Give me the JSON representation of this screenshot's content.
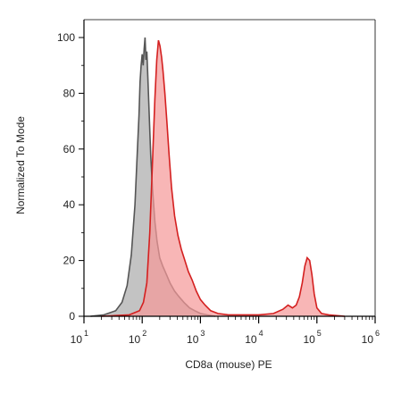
{
  "chart_data": {
    "type": "area",
    "title": "",
    "xlabel": "CD8a (mouse) PE",
    "ylabel": "Normalized To Mode",
    "xscale": "log",
    "xlim": [
      10,
      1000000
    ],
    "ylim": [
      0,
      100
    ],
    "x_ticks": [
      {
        "base": "10",
        "exp": "1",
        "value": 10
      },
      {
        "base": "10",
        "exp": "2",
        "value": 100
      },
      {
        "base": "10",
        "exp": "3",
        "value": 1000
      },
      {
        "base": "10",
        "exp": "4",
        "value": 10000
      },
      {
        "base": "10",
        "exp": "5",
        "value": 100000
      },
      {
        "base": "10",
        "exp": "6",
        "value": 1000000
      }
    ],
    "y_ticks": [
      "0",
      "20",
      "40",
      "60",
      "80",
      "100"
    ],
    "grid": false,
    "series": [
      {
        "color_fill": "#bdbdbd",
        "color_line": "#555555",
        "points": [
          [
            13,
            0
          ],
          [
            22,
            0.5
          ],
          [
            35,
            2
          ],
          [
            45,
            5
          ],
          [
            55,
            11
          ],
          [
            65,
            22
          ],
          [
            75,
            40
          ],
          [
            82,
            58
          ],
          [
            88,
            72
          ],
          [
            92,
            84
          ],
          [
            96,
            90
          ],
          [
            100,
            94
          ],
          [
            104,
            90
          ],
          [
            108,
            96
          ],
          [
            112,
            100
          ],
          [
            116,
            92
          ],
          [
            120,
            95
          ],
          [
            125,
            86
          ],
          [
            132,
            72
          ],
          [
            140,
            58
          ],
          [
            150,
            46
          ],
          [
            165,
            34
          ],
          [
            180,
            27
          ],
          [
            200,
            21
          ],
          [
            225,
            18
          ],
          [
            260,
            15
          ],
          [
            300,
            12
          ],
          [
            360,
            9
          ],
          [
            430,
            7
          ],
          [
            520,
            5
          ],
          [
            650,
            3
          ],
          [
            800,
            2
          ],
          [
            1000,
            1
          ],
          [
            1300,
            0.5
          ],
          [
            1800,
            0
          ]
        ]
      },
      {
        "color_fill": "#f59a9a",
        "color_line": "#d42020",
        "points": [
          [
            20,
            0
          ],
          [
            60,
            0.5
          ],
          [
            90,
            2
          ],
          [
            105,
            5
          ],
          [
            120,
            12
          ],
          [
            135,
            30
          ],
          [
            150,
            55
          ],
          [
            165,
            78
          ],
          [
            178,
            92
          ],
          [
            190,
            99
          ],
          [
            202,
            97
          ],
          [
            215,
            93
          ],
          [
            228,
            88
          ],
          [
            245,
            80
          ],
          [
            265,
            70
          ],
          [
            290,
            58
          ],
          [
            320,
            46
          ],
          [
            360,
            36
          ],
          [
            410,
            29
          ],
          [
            470,
            24
          ],
          [
            540,
            20
          ],
          [
            620,
            16
          ],
          [
            720,
            13
          ],
          [
            850,
            9
          ],
          [
            1000,
            6
          ],
          [
            1200,
            4
          ],
          [
            1500,
            2
          ],
          [
            2000,
            1
          ],
          [
            3000,
            0.5
          ],
          [
            5000,
            0.5
          ],
          [
            10000,
            0.5
          ],
          [
            18000,
            1
          ],
          [
            26000,
            2.5
          ],
          [
            32000,
            4
          ],
          [
            38000,
            3
          ],
          [
            44000,
            4
          ],
          [
            50000,
            7
          ],
          [
            56000,
            12
          ],
          [
            62000,
            18
          ],
          [
            68000,
            21
          ],
          [
            75000,
            20
          ],
          [
            82000,
            15
          ],
          [
            90000,
            8
          ],
          [
            100000,
            3
          ],
          [
            120000,
            1
          ],
          [
            160000,
            0.5
          ],
          [
            300000,
            0
          ]
        ]
      }
    ]
  }
}
